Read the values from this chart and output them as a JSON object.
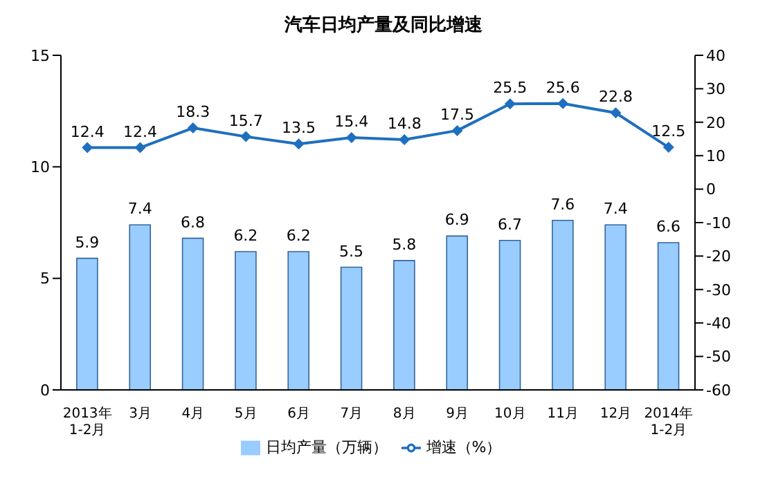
{
  "chart_data": {
    "type": "bar",
    "title": "汽车日均产量及同比增速",
    "categories": [
      "2013年\n1-2月",
      "3月",
      "4月",
      "5月",
      "6月",
      "7月",
      "8月",
      "9月",
      "10月",
      "11月",
      "12月",
      "2014年\n1-2月"
    ],
    "series": [
      {
        "name": "日均产量（万辆）",
        "color": "#99ccff",
        "values": [
          5.9,
          7.4,
          6.8,
          6.2,
          6.2,
          5.5,
          5.8,
          6.9,
          6.7,
          7.6,
          7.4,
          6.6
        ]
      },
      {
        "name": "增速（%）",
        "type": "line",
        "axis": "y2",
        "color": "#1f6fbf",
        "marker": "diamond",
        "values": [
          12.4,
          12.4,
          18.3,
          15.7,
          13.5,
          15.4,
          14.8,
          17.5,
          25.5,
          25.6,
          22.8,
          12.5
        ]
      }
    ],
    "ylim": [
      0,
      15
    ],
    "yticks": [
      0,
      5,
      10,
      15
    ],
    "y2lim": [
      -60,
      40
    ],
    "y2ticks": [
      -60,
      -50,
      -40,
      -30,
      -20,
      -10,
      0,
      10,
      20,
      30,
      40
    ],
    "data_labels": true,
    "grid": false,
    "legend": "bottom"
  }
}
